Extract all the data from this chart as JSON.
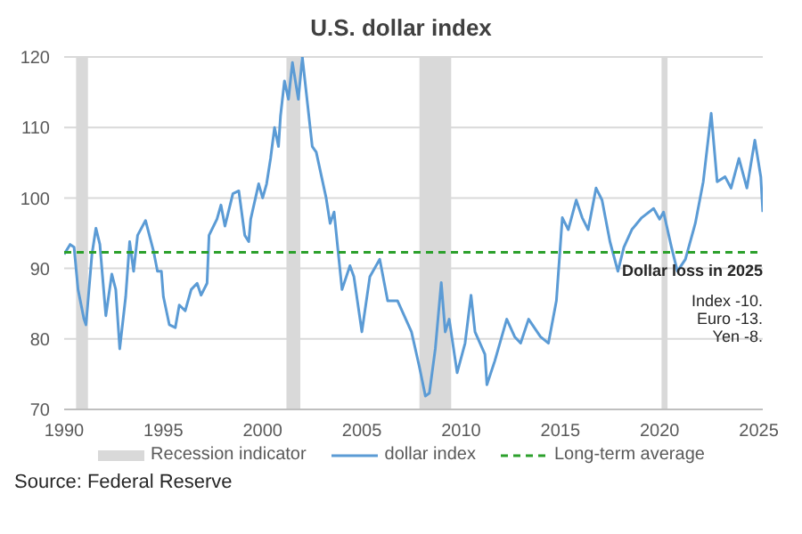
{
  "chart_data": {
    "type": "line",
    "title": "U.S. dollar index",
    "x": [
      1990.0,
      1990.3,
      1990.5,
      1990.7,
      1991.0,
      1991.1,
      1991.4,
      1991.6,
      1991.8,
      1991.9,
      1992.1,
      1992.4,
      1992.6,
      1992.8,
      1993.1,
      1993.3,
      1993.5,
      1993.7,
      1994.1,
      1994.5,
      1994.7,
      1994.9,
      1995.0,
      1995.3,
      1995.6,
      1995.8,
      1996.1,
      1996.4,
      1996.7,
      1996.9,
      1997.2,
      1997.3,
      1997.7,
      1997.9,
      1998.1,
      1998.5,
      1998.8,
      1999.1,
      1999.3,
      1999.4,
      1999.8,
      2000.0,
      2000.2,
      2000.4,
      2000.6,
      2000.8,
      2000.9,
      2001.1,
      2001.3,
      2001.5,
      2001.8,
      2002.0,
      2002.5,
      2002.7,
      2003.2,
      2003.4,
      2003.6,
      2004.0,
      2004.4,
      2004.6,
      2005.0,
      2005.4,
      2005.9,
      2006.3,
      2006.8,
      2007.5,
      2007.9,
      2008.2,
      2008.4,
      2008.7,
      2009.0,
      2009.2,
      2009.4,
      2009.8,
      2010.2,
      2010.5,
      2010.7,
      2011.2,
      2011.3,
      2011.7,
      2012.3,
      2012.7,
      2013.0,
      2013.4,
      2014.0,
      2014.4,
      2014.8,
      2015.1,
      2015.4,
      2015.8,
      2016.1,
      2016.4,
      2016.8,
      2017.1,
      2017.5,
      2017.9,
      2018.2,
      2018.6,
      2019.1,
      2019.7,
      2020.0,
      2020.2,
      2020.6,
      2020.9,
      2021.3,
      2021.8,
      2022.2,
      2022.6,
      2022.9,
      2023.3,
      2023.6,
      2024.0,
      2024.4,
      2024.8,
      2025.1,
      2025.2
    ],
    "series": [
      {
        "name": "dollar index",
        "color": "#5b9bd5",
        "values": [
          92.0,
          93.4,
          93.0,
          87.0,
          82.8,
          82.0,
          92.0,
          95.7,
          93.4,
          90.0,
          83.3,
          89.2,
          87.0,
          78.6,
          86.0,
          93.8,
          89.6,
          94.7,
          96.8,
          92.5,
          89.6,
          89.6,
          86.0,
          82.0,
          81.6,
          84.8,
          84.0,
          87.0,
          87.9,
          86.2,
          87.9,
          94.7,
          97.0,
          99.0,
          96.0,
          100.6,
          101.0,
          94.7,
          93.8,
          97.0,
          102.0,
          100.0,
          102.0,
          105.6,
          110.0,
          107.3,
          111.6,
          116.6,
          114.0,
          119.2,
          114.0,
          120.0,
          107.3,
          106.5,
          100.0,
          96.4,
          98.0,
          87.0,
          90.4,
          88.8,
          81.0,
          88.8,
          91.3,
          85.4,
          85.4,
          81.0,
          76.0,
          71.9,
          72.3,
          78.6,
          88.0,
          81.0,
          82.8,
          75.2,
          79.4,
          86.2,
          81.0,
          77.8,
          73.5,
          76.9,
          82.8,
          80.3,
          79.4,
          82.8,
          80.3,
          79.4,
          85.4,
          97.2,
          95.5,
          99.7,
          97.2,
          95.5,
          101.4,
          99.7,
          93.8,
          89.6,
          93.0,
          95.5,
          97.2,
          98.5,
          97.0,
          98.0,
          93.0,
          89.6,
          91.3,
          96.4,
          102.3,
          112.0,
          102.3,
          103.0,
          101.4,
          105.6,
          101.4,
          108.2,
          103.0,
          98.0
        ]
      }
    ],
    "xlim": [
      1990,
      2025.2
    ],
    "xticks": [
      1990,
      1995,
      2000,
      2005,
      2010,
      2015,
      2020,
      2025
    ],
    "ylim": [
      70,
      120
    ],
    "yticks": [
      70,
      80,
      90,
      100,
      110,
      120
    ],
    "grid": "y",
    "legend": "bottom",
    "marker": "none",
    "line_style": "solid",
    "bands": [
      {
        "axis": "x",
        "from": 1990.6,
        "to": 1991.2,
        "label": "Recession indicator",
        "color": "#d9d9d9"
      },
      {
        "axis": "x",
        "from": 2001.2,
        "to": 2001.9,
        "color": "#d9d9d9"
      },
      {
        "axis": "x",
        "from": 2007.9,
        "to": 2009.5,
        "color": "#d9d9d9"
      },
      {
        "axis": "x",
        "from": 2020.1,
        "to": 2020.4,
        "color": "#d9d9d9"
      }
    ],
    "ref_lines": [
      {
        "axis": "y",
        "value": 92.3,
        "label": "Long-term average",
        "color": "#2ca02c",
        "line_style": "dashed"
      }
    ],
    "annotations": [
      "Dollar loss in 2025",
      "Index -10.",
      "Euro -13.",
      "Yen -8.",
      "Source: Federal Reserve"
    ]
  }
}
